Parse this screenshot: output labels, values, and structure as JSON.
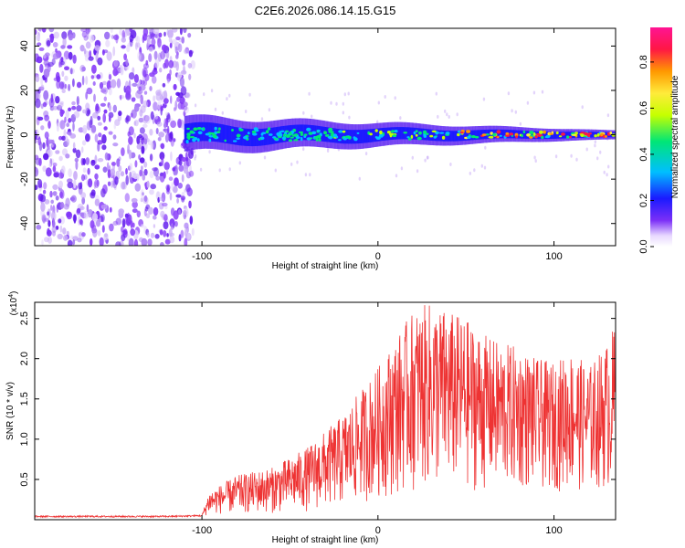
{
  "chart_data": [
    {
      "type": "heatmap",
      "title": "C2E6.2026.086.14.15.G15",
      "xlabel": "Height of straight line (km)",
      "ylabel": "Frequency (Hz)",
      "xlim": [
        -195,
        135
      ],
      "ylim": [
        -50,
        48
      ],
      "xticks": [
        -100,
        0,
        100
      ],
      "xtick_labels": [
        "-100",
        "0",
        "100"
      ],
      "yticks": [
        -40,
        -20,
        0,
        20,
        40
      ],
      "ytick_labels": [
        "-40",
        "-20",
        "0",
        "20",
        "40"
      ],
      "noise_region_upper_x": -105,
      "signal_onset_x": -110,
      "signal_band_center_hz": 0,
      "signal_band_halfwidth_hz": [
        8,
        2
      ],
      "colorbar": {
        "label": "Normalized spectral amplitude",
        "range": [
          0,
          0.95
        ],
        "ticks": [
          0.0,
          0.2,
          0.4,
          0.6,
          0.8
        ],
        "tick_labels": [
          "0.0",
          "0.2",
          "0.4",
          "0.6",
          "0.8"
        ],
        "colors": [
          "#ffffff",
          "#7b2ff7",
          "#1a1aff",
          "#00bfff",
          "#00e676",
          "#c6ff00",
          "#ffeb3b",
          "#ff9800",
          "#ff1744",
          "#ff1493"
        ]
      }
    },
    {
      "type": "line",
      "xlabel": "Height of straight line (km)",
      "ylabel": "SNR (10 * v/v)",
      "scale_label": "(x10",
      "scale_exponent": "4",
      "xlim": [
        -195,
        135
      ],
      "ylim": [
        0.0,
        2.7
      ],
      "xticks": [
        -100,
        0,
        100
      ],
      "xtick_labels": [
        "-100",
        "0",
        "100"
      ],
      "yticks": [
        0.5,
        1.0,
        1.5,
        2.0,
        2.5
      ],
      "ytick_labels": [
        "0.5",
        "1.0",
        "1.5",
        "2.0",
        "2.5"
      ],
      "series": [
        {
          "name": "SNR",
          "color": "#ee3333",
          "x": [
            -195,
            -150,
            -120,
            -100,
            -96,
            -80,
            -60,
            -40,
            -20,
            0,
            10,
            20,
            30,
            40,
            50,
            60,
            70,
            80,
            90,
            100,
            110,
            120,
            130,
            135
          ],
          "y_floor": [
            0.03,
            0.03,
            0.03,
            0.04,
            0.06,
            0.07,
            0.08,
            0.1,
            0.15,
            0.25,
            0.3,
            0.35,
            0.35,
            0.35,
            0.35,
            0.35,
            0.35,
            0.35,
            0.35,
            0.35,
            0.35,
            0.35,
            0.35,
            0.35
          ],
          "y_peak": [
            0.05,
            0.05,
            0.05,
            0.06,
            0.35,
            0.55,
            0.65,
            0.9,
            1.3,
            1.9,
            2.25,
            2.6,
            2.7,
            2.6,
            2.5,
            2.3,
            2.2,
            2.15,
            2.0,
            1.95,
            2.1,
            1.9,
            2.2,
            2.45
          ]
        }
      ]
    }
  ]
}
